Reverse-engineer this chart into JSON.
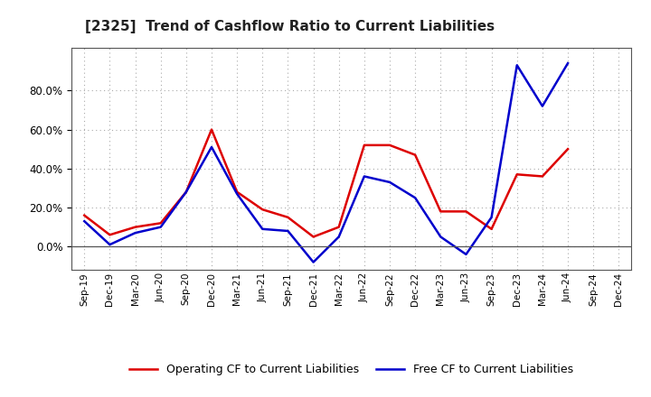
{
  "title": "[2325]  Trend of Cashflow Ratio to Current Liabilities",
  "x_labels": [
    "Sep-19",
    "Dec-19",
    "Mar-20",
    "Jun-20",
    "Sep-20",
    "Dec-20",
    "Mar-21",
    "Jun-21",
    "Sep-21",
    "Dec-21",
    "Mar-22",
    "Jun-22",
    "Sep-22",
    "Dec-22",
    "Mar-23",
    "Jun-23",
    "Sep-23",
    "Dec-23",
    "Mar-24",
    "Jun-24",
    "Sep-24",
    "Dec-24"
  ],
  "operating_cf": [
    0.16,
    0.06,
    0.1,
    0.12,
    0.28,
    0.6,
    0.28,
    0.19,
    0.15,
    0.05,
    0.1,
    0.52,
    0.52,
    0.47,
    0.18,
    0.18,
    0.09,
    0.37,
    0.36,
    0.5,
    null,
    null
  ],
  "free_cf": [
    0.13,
    0.01,
    0.07,
    0.1,
    0.28,
    0.51,
    0.27,
    0.09,
    0.08,
    -0.08,
    0.05,
    0.36,
    0.33,
    0.25,
    0.05,
    -0.04,
    0.15,
    0.93,
    0.72,
    0.94,
    null,
    null
  ],
  "operating_cf_color": "#dd0000",
  "free_cf_color": "#0000cc",
  "background_color": "#ffffff",
  "plot_bg_color": "#ffffff",
  "grid_color": "#888888",
  "ylim": [
    -0.12,
    1.02
  ],
  "yticks": [
    0.0,
    0.2,
    0.4,
    0.6,
    0.8
  ],
  "title_fontsize": 11,
  "legend_labels": [
    "Operating CF to Current Liabilities",
    "Free CF to Current Liabilities"
  ]
}
